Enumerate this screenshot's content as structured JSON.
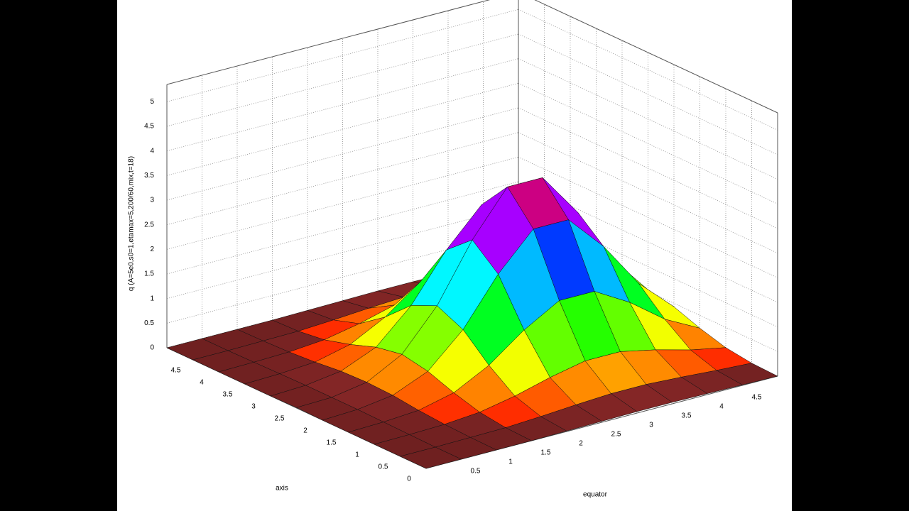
{
  "chart_data": {
    "type": "surface",
    "xlabel": "axis",
    "ylabel": "equator",
    "zlabel": "q (A=5e0,s0=1,etamax=5,200/60,mix,t=18)",
    "xlim": [
      0,
      5
    ],
    "ylim": [
      0,
      5
    ],
    "zlim": [
      0,
      5.35
    ],
    "xticks": [
      0,
      0.5,
      1,
      1.5,
      2,
      2.5,
      3,
      3.5,
      4,
      4.5
    ],
    "yticks": [
      0.5,
      1,
      1.5,
      2,
      2.5,
      3,
      3.5,
      4,
      4.5
    ],
    "zticks": [
      0,
      0.5,
      1,
      1.5,
      2,
      2.5,
      3,
      3.5,
      4,
      4.5,
      5
    ],
    "grid": true,
    "x": [
      0,
      0.5,
      1,
      1.5,
      2,
      2.5,
      3,
      3.5,
      4,
      4.5,
      5
    ],
    "y": [
      0,
      0.5,
      1,
      1.5,
      2,
      2.5,
      3,
      3.5,
      4,
      4.5,
      5
    ],
    "z": [
      [
        0,
        0,
        0,
        0,
        0.01,
        0.02,
        0.03,
        0.03,
        0.02,
        0.01,
        0
      ],
      [
        0,
        0,
        0.01,
        0.02,
        0.06,
        0.11,
        0.15,
        0.15,
        0.11,
        0.06,
        0.02
      ],
      [
        0,
        0.01,
        0.03,
        0.09,
        0.23,
        0.42,
        0.57,
        0.57,
        0.42,
        0.23,
        0.09
      ],
      [
        0,
        0.02,
        0.07,
        0.24,
        0.61,
        1.14,
        1.55,
        1.55,
        1.14,
        0.61,
        0.24
      ],
      [
        0,
        0.03,
        0.13,
        0.43,
        1.09,
        2.03,
        2.76,
        2.76,
        2.03,
        1.09,
        0.43
      ],
      [
        0.01,
        0.03,
        0.15,
        0.53,
        1.33,
        2.48,
        3.37,
        3.37,
        2.48,
        1.33,
        0.53
      ],
      [
        0,
        0.03,
        0.13,
        0.43,
        1.09,
        2.03,
        2.76,
        2.76,
        2.03,
        1.09,
        0.43
      ],
      [
        0,
        0.02,
        0.07,
        0.24,
        0.61,
        1.14,
        1.55,
        1.55,
        1.14,
        0.61,
        0.24
      ],
      [
        0,
        0.01,
        0.03,
        0.09,
        0.23,
        0.42,
        0.57,
        0.57,
        0.42,
        0.23,
        0.09
      ],
      [
        0,
        0,
        0.01,
        0.02,
        0.06,
        0.11,
        0.15,
        0.15,
        0.11,
        0.06,
        0.02
      ],
      [
        0,
        0,
        0,
        0,
        0.01,
        0.02,
        0.03,
        0.03,
        0.02,
        0.01,
        0
      ]
    ]
  }
}
